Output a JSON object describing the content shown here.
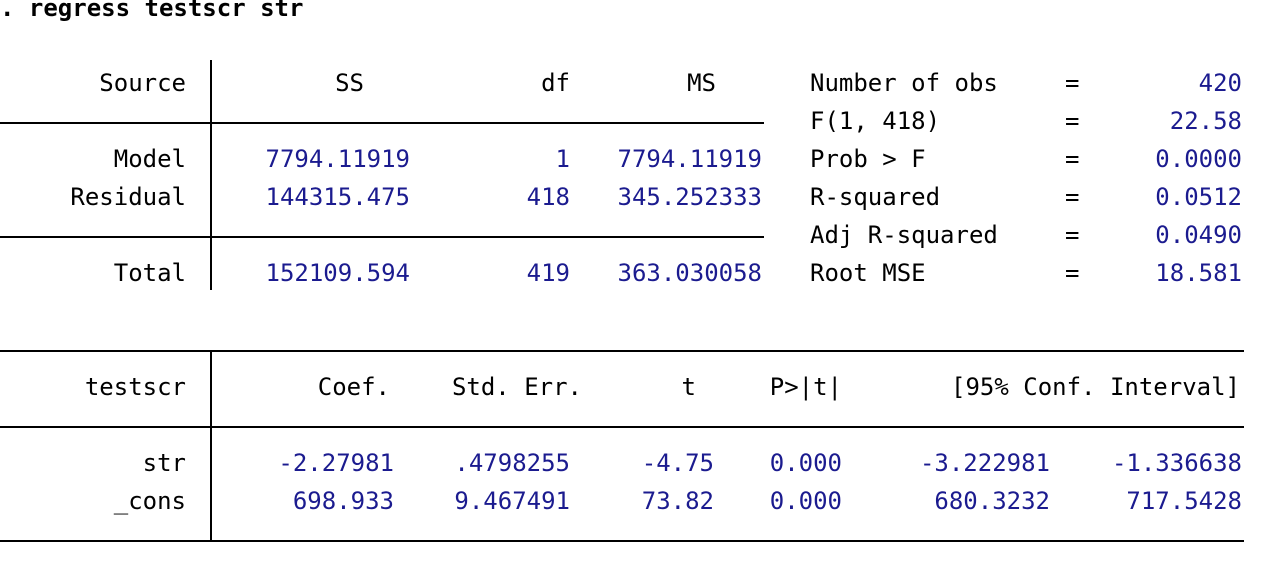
{
  "command": ". regress testscr str",
  "anova": {
    "headers": {
      "source": "Source",
      "ss": "SS",
      "df": "df",
      "ms": "MS"
    },
    "rows": [
      {
        "source": "Model",
        "ss": "7794.11919",
        "df": "1",
        "ms": "7794.11919"
      },
      {
        "source": "Residual",
        "ss": "144315.475",
        "df": "418",
        "ms": "345.252333"
      }
    ],
    "total": {
      "source": "Total",
      "ss": "152109.594",
      "df": "419",
      "ms": "363.030058"
    }
  },
  "stats": [
    {
      "label": "Number of obs",
      "eq": "=",
      "value": "420"
    },
    {
      "label": "F(1, 418)",
      "eq": "=",
      "value": "22.58"
    },
    {
      "label": "Prob > F",
      "eq": "=",
      "value": "0.0000"
    },
    {
      "label": "R-squared",
      "eq": "=",
      "value": "0.0512"
    },
    {
      "label": "Adj R-squared",
      "eq": "=",
      "value": "0.0490"
    },
    {
      "label": "Root MSE",
      "eq": "=",
      "value": "18.581"
    }
  ],
  "coef": {
    "headers": {
      "var": "testscr",
      "coef": "Coef.",
      "se": "Std. Err.",
      "t": "t",
      "p": "P>|t|",
      "ci": "[95% Conf. Interval]"
    },
    "rows": [
      {
        "var": "str",
        "coef": "-2.27981",
        "se": ".4798255",
        "t": "-4.75",
        "p": "0.000",
        "lo": "-3.222981",
        "hi": "-1.336638"
      },
      {
        "var": "_cons",
        "coef": "698.933",
        "se": "9.467491",
        "t": "73.82",
        "p": "0.000",
        "lo": "680.3232",
        "hi": "717.5428"
      }
    ]
  }
}
